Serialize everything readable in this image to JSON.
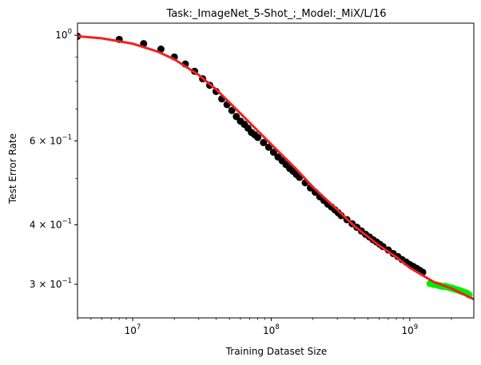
{
  "chart_data": {
    "type": "scatter",
    "title": "Task:_ImageNet_5-Shot_;_Model:_MiX/L/16",
    "xlabel": "Training Dataset Size",
    "ylabel": "Test Error Rate",
    "x_scale": "log",
    "y_scale": "log",
    "xlim": [
      4000000,
      2900000000
    ],
    "ylim": [
      0.255,
      1.06
    ],
    "grid": false,
    "x_ticks": [
      {
        "value": 10000000,
        "base": "10",
        "exp": "7"
      },
      {
        "value": 100000000,
        "base": "10",
        "exp": "8"
      },
      {
        "value": 1000000000,
        "base": "10",
        "exp": "9"
      }
    ],
    "y_ticks": [
      {
        "value": 1.0,
        "label": "10",
        "exp": "0"
      },
      {
        "value": 0.6,
        "label": "6 × 10",
        "exp": "−1"
      },
      {
        "value": 0.4,
        "label": "4 × 10",
        "exp": "−1"
      },
      {
        "value": 0.3,
        "label": "3 × 10",
        "exp": "−1"
      }
    ],
    "colors": {
      "observed": "#000000",
      "extrapolated": "#00ee00",
      "fit": "#ee2222"
    },
    "fit_curve": {
      "x": [
        4000000,
        6000000,
        10000000,
        15000000,
        20000000,
        30000000,
        40000000,
        60000000,
        80000000,
        100000000,
        150000000,
        200000000,
        300000000,
        400000000,
        600000000,
        800000000,
        1000000000,
        1500000000,
        2000000000,
        2900000000
      ],
      "y": [
        0.995,
        0.985,
        0.96,
        0.925,
        0.89,
        0.825,
        0.77,
        0.685,
        0.63,
        0.59,
        0.525,
        0.48,
        0.43,
        0.397,
        0.362,
        0.342,
        0.325,
        0.303,
        0.294,
        0.279
      ]
    },
    "series": [
      {
        "marker_color": "#000000",
        "x": [
          4000000,
          8000000,
          12000000,
          16000000,
          20000000,
          24000000,
          28000000,
          32000000,
          36000000,
          40000000,
          44000000,
          48000000,
          52000000,
          56000000,
          60000000,
          64000000,
          68000000,
          72000000,
          76000000,
          80000000,
          88000000,
          96000000,
          104000000,
          112000000,
          120000000,
          128000000,
          136000000,
          144000000,
          152000000,
          160000000,
          176000000,
          192000000,
          208000000,
          224000000,
          240000000,
          256000000,
          272000000,
          288000000,
          304000000,
          320000000,
          352000000,
          384000000,
          416000000,
          448000000,
          480000000,
          512000000,
          544000000,
          576000000,
          608000000,
          640000000,
          700000000,
          760000000,
          820000000,
          880000000,
          940000000,
          1000000000,
          1060000000,
          1120000000,
          1180000000,
          1240000000
        ],
        "y": [
          0.995,
          0.98,
          0.96,
          0.935,
          0.9,
          0.87,
          0.84,
          0.81,
          0.785,
          0.762,
          0.735,
          0.715,
          0.695,
          0.675,
          0.66,
          0.65,
          0.638,
          0.625,
          0.618,
          0.61,
          0.595,
          0.582,
          0.568,
          0.555,
          0.545,
          0.535,
          0.525,
          0.518,
          0.51,
          0.503,
          0.49,
          0.478,
          0.468,
          0.458,
          0.45,
          0.442,
          0.436,
          0.43,
          0.424,
          0.418,
          0.41,
          0.402,
          0.395,
          0.388,
          0.382,
          0.377,
          0.372,
          0.368,
          0.364,
          0.36,
          0.354,
          0.348,
          0.343,
          0.338,
          0.334,
          0.33,
          0.327,
          0.324,
          0.321,
          0.318
        ]
      },
      {
        "marker_color": "#00ee00",
        "x": [
          1400000000,
          1480000000,
          1560000000,
          1640000000,
          1720000000,
          1800000000,
          1880000000,
          1960000000,
          2040000000,
          2120000000,
          2200000000,
          2280000000,
          2360000000,
          2440000000,
          2520000000,
          2600000000,
          2680000000
        ],
        "y": [
          0.301,
          0.3,
          0.299,
          0.298,
          0.297,
          0.297,
          0.296,
          0.295,
          0.294,
          0.293,
          0.292,
          0.291,
          0.29,
          0.289,
          0.288,
          0.287,
          0.285
        ]
      }
    ]
  }
}
